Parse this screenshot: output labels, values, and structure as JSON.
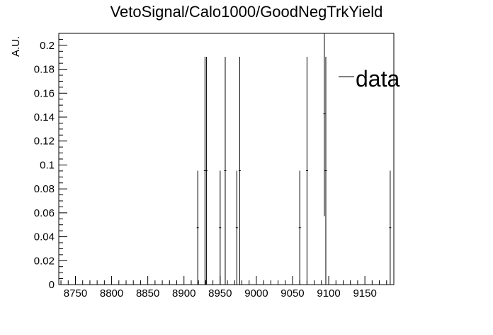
{
  "chart_data": {
    "type": "histogram",
    "title": "VetoSignal/Calo1000/GoodNegTrkYield",
    "xlabel": "",
    "ylabel": "A.U.",
    "xlim": [
      8727,
      9190
    ],
    "ylim": [
      0,
      0.21
    ],
    "x_ticks": [
      8750,
      8800,
      8850,
      8900,
      8950,
      9000,
      9050,
      9100,
      9150
    ],
    "y_ticks": [
      0,
      0.02,
      0.04,
      0.06,
      0.08,
      0.1,
      0.12,
      0.14,
      0.16,
      0.18,
      0.2
    ],
    "grid": false,
    "legend": {
      "position": "top-right"
    },
    "series": [
      {
        "name": "data",
        "color": "#000000",
        "points": [
          {
            "x": 8919,
            "y": 0.0476,
            "err": 0.0476
          },
          {
            "x": 8929,
            "y": 0.0952,
            "err": 0.0952
          },
          {
            "x": 8931,
            "y": 0.0952,
            "err": 0.0952
          },
          {
            "x": 8950,
            "y": 0.0476,
            "err": 0.0476
          },
          {
            "x": 8957,
            "y": 0.0952,
            "err": 0.0952
          },
          {
            "x": 8973,
            "y": 0.0476,
            "err": 0.0476
          },
          {
            "x": 8977,
            "y": 0.0952,
            "err": 0.0952
          },
          {
            "x": 9060,
            "y": 0.0476,
            "err": 0.0476
          },
          {
            "x": 9070,
            "y": 0.0952,
            "err": 0.0952
          },
          {
            "x": 9094,
            "y": 0.1429,
            "err": 0.0857
          },
          {
            "x": 9096,
            "y": 0.0952,
            "err": 0.0952
          },
          {
            "x": 9185,
            "y": 0.0476,
            "err": 0.0476
          }
        ]
      }
    ]
  }
}
